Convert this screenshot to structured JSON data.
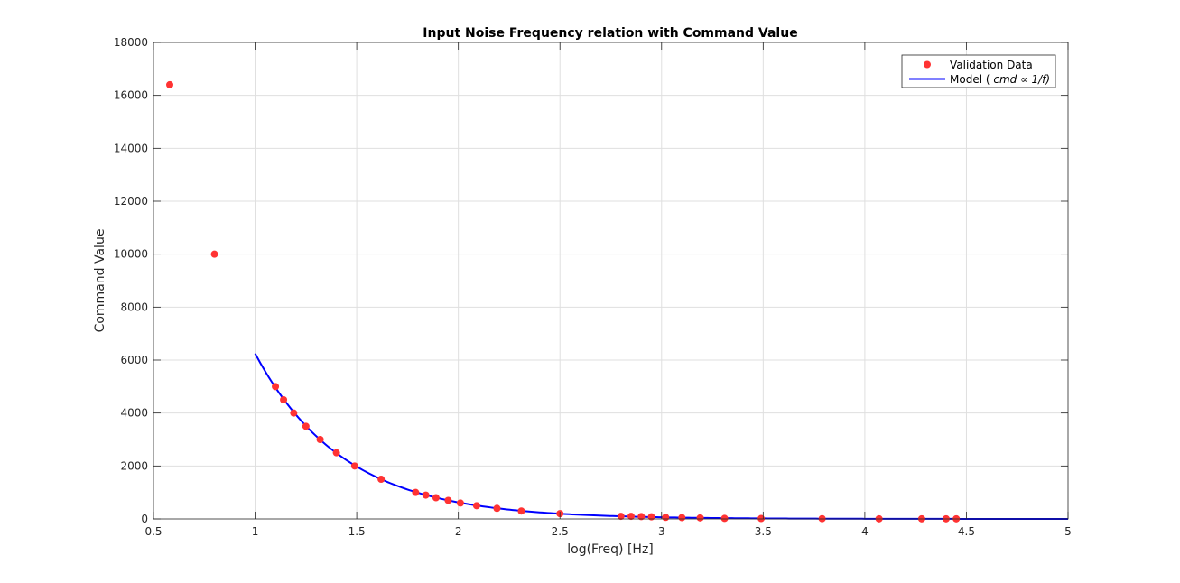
{
  "chart_data": {
    "type": "scatter",
    "title": "Input Noise Frequency relation with Command Value",
    "xlabel": "log(Freq) [Hz]",
    "ylabel": "Command Value",
    "xlim": [
      0.5,
      5
    ],
    "ylim": [
      0,
      18000
    ],
    "xticks": [
      0.5,
      1,
      1.5,
      2,
      2.5,
      3,
      3.5,
      4,
      4.5,
      5
    ],
    "xtick_labels": [
      "0.5",
      "1",
      "1.5",
      "2",
      "2.5",
      "3",
      "3.5",
      "4",
      "4.5",
      "5"
    ],
    "yticks": [
      0,
      2000,
      4000,
      6000,
      8000,
      10000,
      12000,
      14000,
      16000,
      18000
    ],
    "ytick_labels": [
      "0",
      "2000",
      "4000",
      "6000",
      "8000",
      "10000",
      "12000",
      "14000",
      "16000",
      "18000"
    ],
    "grid": true,
    "legend_position": "top-right",
    "legend": {
      "validation_label": "Validation Data",
      "model_prefix": "Model ( ",
      "model_formula": "cmd ∝ 1/f)"
    },
    "series": [
      {
        "name": "Validation Data",
        "kind": "scatter",
        "color": "#ff3333",
        "x": [
          0.58,
          0.8,
          1.1,
          1.14,
          1.19,
          1.25,
          1.32,
          1.4,
          1.49,
          1.62,
          1.79,
          1.84,
          1.89,
          1.95,
          2.01,
          2.09,
          2.19,
          2.31,
          2.5,
          2.8,
          2.85,
          2.9,
          2.95,
          3.02,
          3.1,
          3.19,
          3.31,
          3.49,
          3.79,
          4.07,
          4.28,
          4.4,
          4.45
        ],
        "y": [
          16400,
          10000,
          5000,
          4500,
          4000,
          3500,
          3000,
          2500,
          2000,
          1500,
          1000,
          900,
          800,
          700,
          600,
          500,
          400,
          300,
          200,
          100,
          100,
          90,
          80,
          60,
          50,
          40,
          20,
          15,
          10,
          5,
          5,
          5,
          5
        ]
      },
      {
        "name": "Model ( cmd ∝ 1/f)",
        "kind": "line",
        "color": "#0000ff",
        "x": [
          1.0,
          1.1,
          1.2,
          1.3,
          1.4,
          1.5,
          1.6,
          1.8,
          2.0,
          2.2,
          2.5,
          2.8,
          3.0,
          3.5,
          4.0,
          4.5,
          5.0
        ],
        "y": [
          6250,
          4960,
          3940,
          3130,
          2490,
          1980,
          1570,
          990,
          625,
          395,
          198,
          99,
          62.5,
          19.8,
          6.25,
          1.98,
          0.625
        ]
      }
    ]
  },
  "colors": {
    "axes_background": "#ffffff",
    "grid": "#dfdfdf",
    "axis": "#262626"
  }
}
